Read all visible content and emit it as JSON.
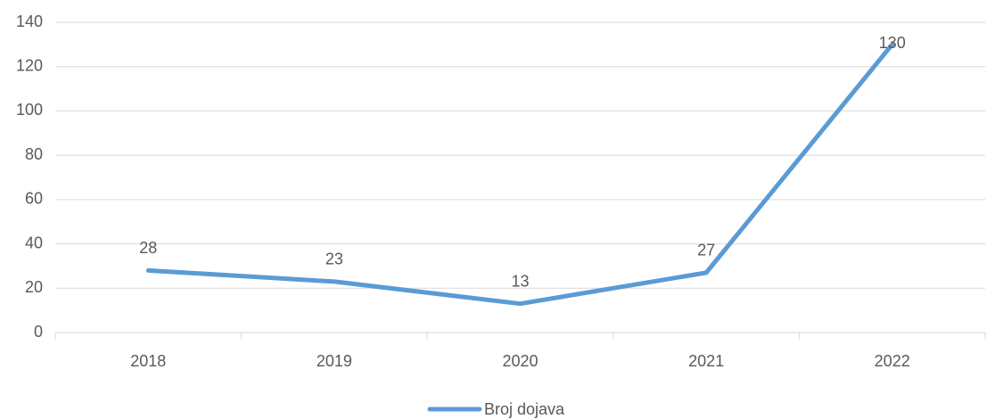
{
  "chart_data": {
    "type": "line",
    "categories": [
      "2018",
      "2019",
      "2020",
      "2021",
      "2022"
    ],
    "series": [
      {
        "name": "Broj dojava",
        "color": "#5b9bd5",
        "values": [
          28,
          23,
          13,
          27,
          130
        ]
      }
    ],
    "ylim": [
      0,
      140
    ],
    "yticks": [
      0,
      20,
      40,
      60,
      80,
      100,
      120,
      140
    ],
    "grid": true,
    "legend": "bottom"
  }
}
